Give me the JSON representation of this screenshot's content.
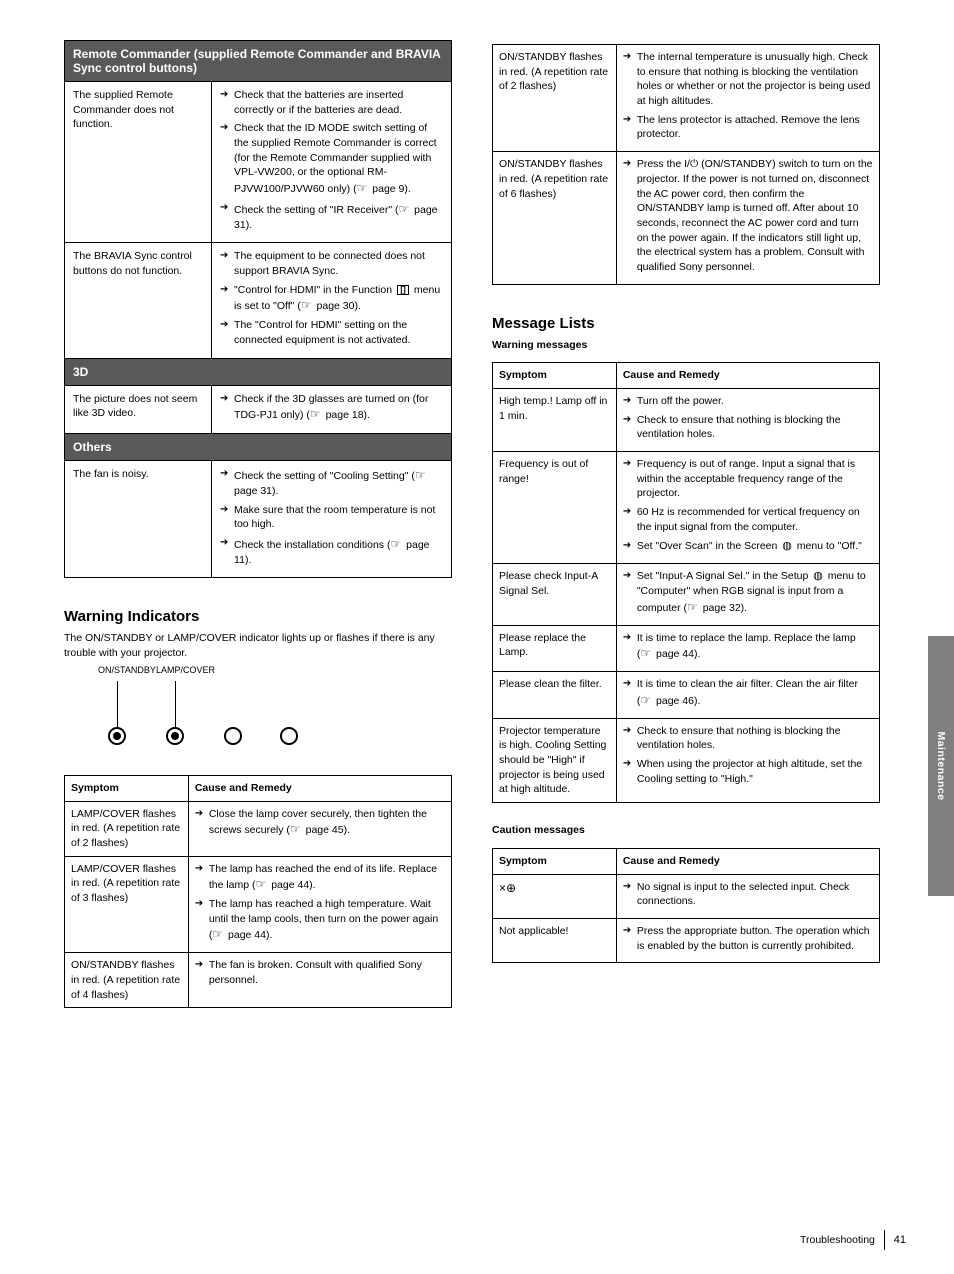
{
  "side_tab": "Maintenance",
  "footer": {
    "label": "Troubleshooting",
    "page": "41"
  },
  "left_table": {
    "s1_title": "Remote Commander (supplied Remote Commander and BRAVIA Sync control buttons)",
    "s1_rows": [
      {
        "symptom": "The supplied Remote Commander does not function.",
        "causes": [
          "Check that the batteries are inserted correctly or if the batteries are dead.",
          "Check that the ID MODE switch setting of the supplied Remote Commander is correct (for the Remote Commander supplied with VPL-VW200, or the optional RM-PJVW100/PJVW60 only) (<span class='hand'></span> page 9).",
          "Check the setting of \"IR Receiver\" (<span class='hand'></span> page 31)."
        ]
      },
      {
        "symptom": "The BRAVIA Sync control buttons do not function.",
        "causes": [
          "The equipment to be connected does not support BRAVIA Sync.",
          "\"Control for HDMI\" in the Function <span class='glyph-memstick'></span> menu is set to \"Off\" (<span class='hand'></span> page 30).",
          "The \"Control for HDMI\" setting on the connected equipment is not activated."
        ]
      }
    ],
    "s2_title": "3D",
    "s2_rows": [
      {
        "symptom": "The picture does not seem like 3D video.",
        "causes": [
          "Check if the 3D glasses are turned on (for TDG-PJ1 only) (<span class='hand'></span> page 18)."
        ]
      }
    ],
    "s3_title": "Others",
    "s3_rows": [
      {
        "symptom": "The fan is noisy.",
        "causes": [
          "Check the setting of \"Cooling Setting\" (<span class='hand'></span> page 31).",
          "Make sure that the room temperature is not too high.",
          "Check the installation conditions (<span class='hand'></span> page 11)."
        ]
      }
    ],
    "indicators": {
      "title": "Warning Indicators",
      "sub": "The ON/STANDBY or LAMP/COVER indicator lights up or flashes if there is any trouble with your projector.",
      "lamps": [
        {
          "label": "ON/STANDBY",
          "on": true
        },
        {
          "label": "LAMP/COVER",
          "on": true
        },
        {
          "label": "",
          "on": false
        },
        {
          "label": "",
          "on": false
        }
      ]
    },
    "ind_table_head": [
      "Symptom",
      "Cause and Remedy"
    ],
    "ind_rows": [
      {
        "symptom": "LAMP/COVER flashes in red. (A repetition rate of 2 flashes)",
        "causes": [
          "Close the lamp cover securely, then tighten the screws securely (<span class='hand'></span> page 45)."
        ]
      },
      {
        "symptom": "LAMP/COVER flashes in red. (A repetition rate of 3 flashes)",
        "causes": [
          "The lamp has reached the end of its life. Replace the lamp (<span class='hand'></span> page 44).",
          "The lamp has reached a high temperature. Wait until the lamp cools, then turn on the power again (<span class='hand'></span> page 44)."
        ]
      },
      {
        "symptom": "ON/STANDBY flashes in red. (A repetition rate of 4 flashes)",
        "causes": [
          "The fan is broken. Consult with qualified Sony personnel."
        ]
      }
    ]
  },
  "right_col": {
    "cont_rows": [
      {
        "symptom": "ON/STANDBY flashes in red. (A repetition rate of 2 flashes)",
        "causes": [
          "The internal temperature is unusually high. Check to ensure that nothing is blocking the ventilation holes or whether or not the projector is being used at high altitudes.",
          "The lens protector is attached. Remove the lens protector."
        ]
      },
      {
        "symptom": "ON/STANDBY flashes in red. (A repetition rate of 6 flashes)",
        "causes": [
          "Press the I/<span style='font-family:Arial;'>&#9211;</span> (ON/STANDBY) switch to turn on the projector. If the power is not turned on, disconnect the AC power cord, then confirm the ON/STANDBY lamp is turned off. After about 10 seconds, reconnect the AC power cord and turn on the power again. If the indicators still light up, the electrical system has a problem. Consult with qualified Sony personnel."
        ]
      }
    ],
    "msg": {
      "title": "Message Lists",
      "sub": "Warning messages",
      "head": [
        "Symptom",
        "Cause and Remedy"
      ],
      "rows": [
        {
          "symptom": "High temp.! Lamp off in 1 min.",
          "causes": [
            "Turn off the power.",
            "Check to ensure that nothing is blocking the ventilation holes."
          ]
        },
        {
          "symptom": "Frequency is out of range!",
          "causes": [
            "Frequency is out of range. Input a signal that is within the acceptable frequency range of the projector.",
            "60 Hz is recommended for vertical frequency on the input signal from the computer.",
            "Set \"Over Scan\" in the Screen <span class='glyph-cube'></span> menu to \"Off.\""
          ]
        },
        {
          "symptom": "Please check Input-A Signal Sel.",
          "causes": [
            "Set \"Input-A Signal Sel.\" in the Setup <span class='glyph-cube'></span> menu to \"Computer\" when RGB signal is input from a computer (<span class='hand'></span> page 32)."
          ]
        },
        {
          "symptom": "Please replace the Lamp.",
          "causes": [
            "It is time to replace the lamp. Replace the lamp (<span class='hand'></span> page 44)."
          ]
        },
        {
          "symptom": "Please clean the filter.",
          "causes": [
            "It is time to clean the air filter. Clean the air filter (<span class='hand'></span> page 46)."
          ]
        },
        {
          "symptom": "Projector temperature is high. Cooling Setting should be \"High\" if projector is being used at high altitude.",
          "causes": [
            "Check to ensure that nothing is blocking the ventilation holes.",
            "When using the projector at high altitude, set the Cooling setting to \"High.\""
          ]
        }
      ]
    },
    "caution": {
      "sub": "Caution messages",
      "head": [
        "Symptom",
        "Cause and Remedy"
      ],
      "rows": [
        {
          "symptom": "<span class='glyph-noinput'></span>",
          "causes": [
            "No signal is input to the selected input. Check connections."
          ]
        },
        {
          "symptom": "Not applicable!",
          "causes": [
            "Press the appropriate button. The operation which is enabled by the button is currently prohibited."
          ]
        }
      ]
    }
  }
}
